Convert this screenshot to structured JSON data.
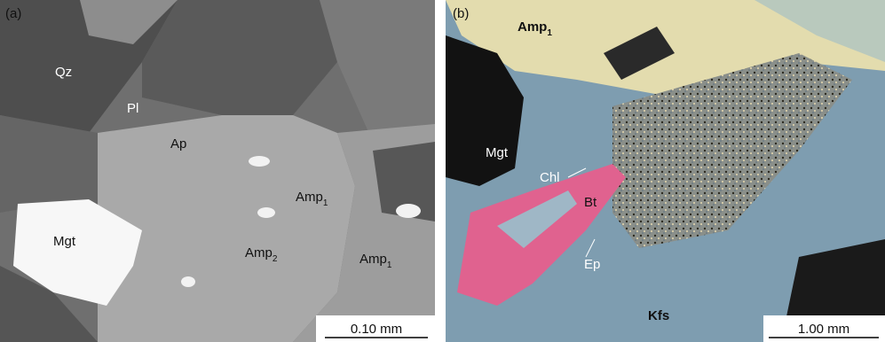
{
  "panel_a": {
    "tag": "(a)",
    "labels": [
      {
        "text": "Qz"
      },
      {
        "text": "Pl"
      },
      {
        "text": "Ap"
      },
      {
        "text": "Mgt"
      },
      {
        "text": "Amp",
        "sub": "1"
      },
      {
        "text": "Amp",
        "sub": "2"
      },
      {
        "text": "Amp",
        "sub": "1"
      }
    ],
    "scale_bar": "0.10 mm"
  },
  "panel_b": {
    "tag": "(b)",
    "labels": [
      {
        "text": "Amp",
        "sub": "1"
      },
      {
        "text": "Mgt"
      },
      {
        "text": "Chl"
      },
      {
        "text": "Bt"
      },
      {
        "text": "Ep"
      },
      {
        "text": "Kfs"
      }
    ],
    "scale_bar": "1.00 mm"
  }
}
